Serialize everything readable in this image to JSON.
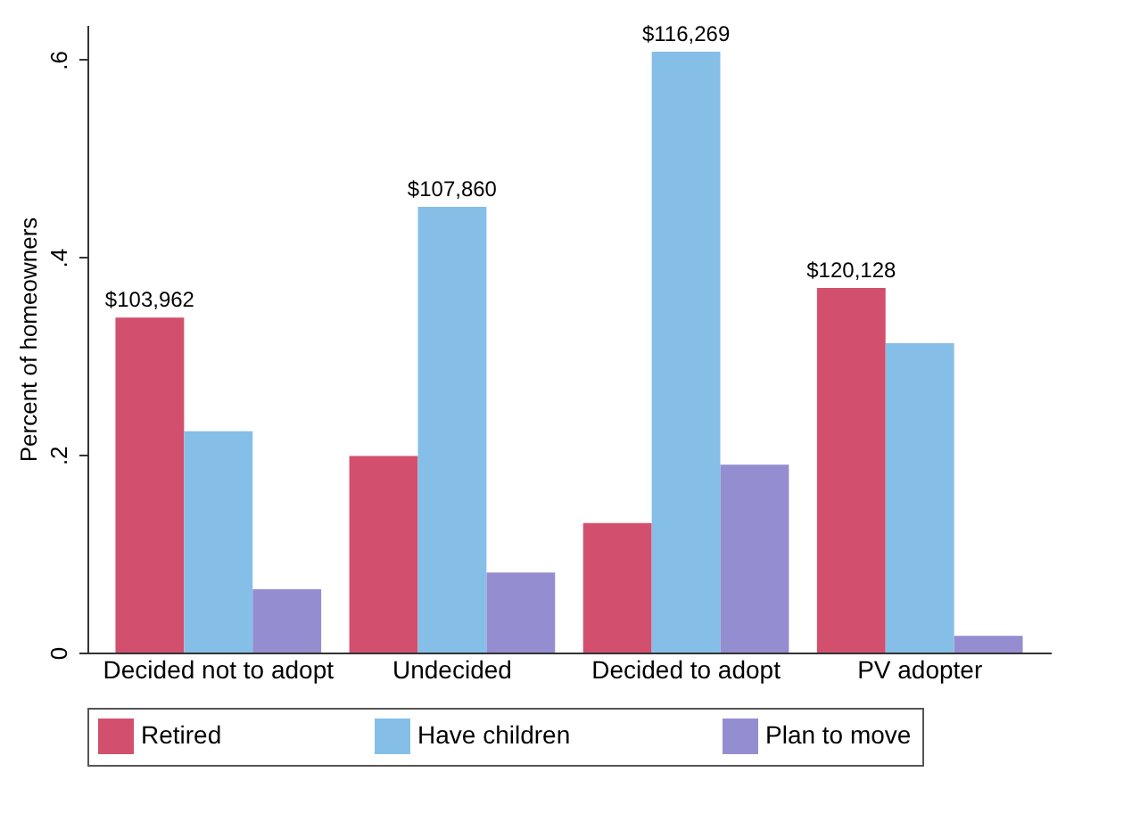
{
  "chart_data": {
    "type": "bar",
    "ylabel": "Percent of homeowners",
    "categories": [
      "Decided not to adopt",
      "Undecided",
      "Decided to adopt",
      "PV adopter"
    ],
    "series": [
      {
        "name": "Retired",
        "color": "#d2506e",
        "values": [
          0.339,
          0.199,
          0.131,
          0.369
        ]
      },
      {
        "name": "Have children",
        "color": "#85bfe8",
        "values": [
          0.224,
          0.451,
          0.608,
          0.313
        ]
      },
      {
        "name": "Plan to move",
        "color": "#948ed0",
        "values": [
          0.064,
          0.081,
          0.19,
          0.017
        ]
      }
    ],
    "ylim": [
      0,
      0.635
    ],
    "yticks": [
      0,
      {
        "value": 0.2,
        "label": ".2"
      },
      {
        "value": 0.4,
        "label": ".4"
      },
      {
        "value": 0.6,
        "label": ".6"
      }
    ],
    "annotations": [
      "$103,962",
      "$107,860",
      "$116,269",
      "$120,128"
    ],
    "grid": false,
    "legend": "bottom"
  }
}
